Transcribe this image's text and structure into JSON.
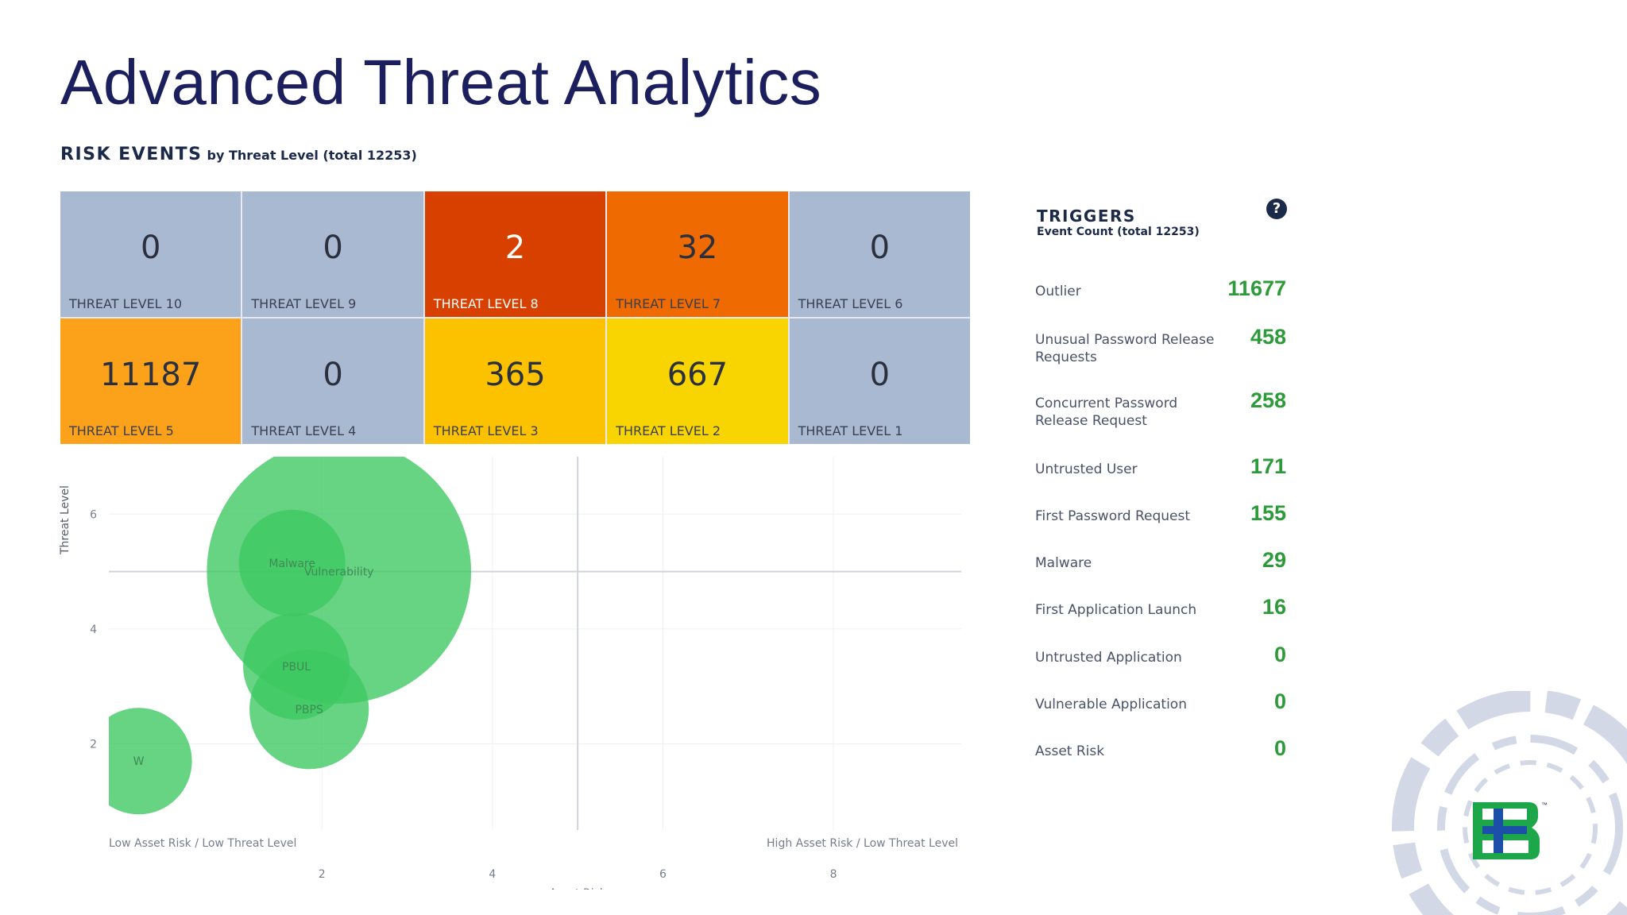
{
  "header": {
    "title": "Advanced Threat Analytics",
    "subtitle_main": "RISK EVENTS",
    "subtitle_rest": "by Threat Level (total 12253)"
  },
  "threat_levels": [
    {
      "label": "THREAT LEVEL 10",
      "count": "0",
      "color": "#a9b9d2"
    },
    {
      "label": "THREAT LEVEL 9",
      "count": "0",
      "color": "#a9b9d2"
    },
    {
      "label": "THREAT LEVEL 8",
      "count": "2",
      "color": "#d84000"
    },
    {
      "label": "THREAT LEVEL 7",
      "count": "32",
      "color": "#ef6a00"
    },
    {
      "label": "THREAT LEVEL 6",
      "count": "0",
      "color": "#a9b9d2"
    },
    {
      "label": "THREAT LEVEL 5",
      "count": "11187",
      "color": "#fca21a"
    },
    {
      "label": "THREAT LEVEL 4",
      "count": "0",
      "color": "#a9b9d2"
    },
    {
      "label": "THREAT LEVEL 3",
      "count": "365",
      "color": "#fcc200"
    },
    {
      "label": "THREAT LEVEL 2",
      "count": "667",
      "color": "#f8d500"
    },
    {
      "label": "THREAT LEVEL 1",
      "count": "0",
      "color": "#a9b9d2"
    }
  ],
  "triggers": {
    "title": "TRIGGERS",
    "subtitle": "Event Count (total 12253)",
    "help_icon": "question-circle-icon",
    "items": [
      {
        "label": "Outlier",
        "value": "11677"
      },
      {
        "label": "Unusual Password Release Requests",
        "value": "458"
      },
      {
        "label": "Concurrent Password Release Request",
        "value": "258"
      },
      {
        "label": "Untrusted User",
        "value": "171"
      },
      {
        "label": "First Password Request",
        "value": "155"
      },
      {
        "label": "Malware",
        "value": "29"
      },
      {
        "label": "First Application Launch",
        "value": "16"
      },
      {
        "label": "Untrusted Application",
        "value": "0"
      },
      {
        "label": "Vulnerable Application",
        "value": "0"
      },
      {
        "label": "Asset Risk",
        "value": "0"
      }
    ]
  },
  "chart_data": {
    "type": "scatter",
    "xlabel": "Asset Risk",
    "ylabel": "Threat Level",
    "xlim": [
      -0.5,
      9.5
    ],
    "ylim": [
      0.5,
      7
    ],
    "x_ticks": [
      2,
      4,
      6,
      8
    ],
    "y_ticks": [
      2,
      4,
      6
    ],
    "quadrant_x": 5,
    "quadrant_y": 5,
    "corner_labels": {
      "bottom_left": "Low Asset Risk / Low Threat Level",
      "bottom_right": "High Asset Risk / Low Threat Level"
    },
    "bubble_color": "#3cc860",
    "points": [
      {
        "label": "Vulnerability",
        "x": 2.2,
        "y": 5.0,
        "size": 3.1
      },
      {
        "label": "Malware",
        "x": 1.65,
        "y": 5.15,
        "size": 1.25
      },
      {
        "label": "PBUL",
        "x": 1.7,
        "y": 3.35,
        "size": 1.25
      },
      {
        "label": "PBPS",
        "x": 1.85,
        "y": 2.6,
        "size": 1.4
      },
      {
        "label": "W",
        "x": -0.15,
        "y": 1.7,
        "size": 1.25
      }
    ]
  }
}
